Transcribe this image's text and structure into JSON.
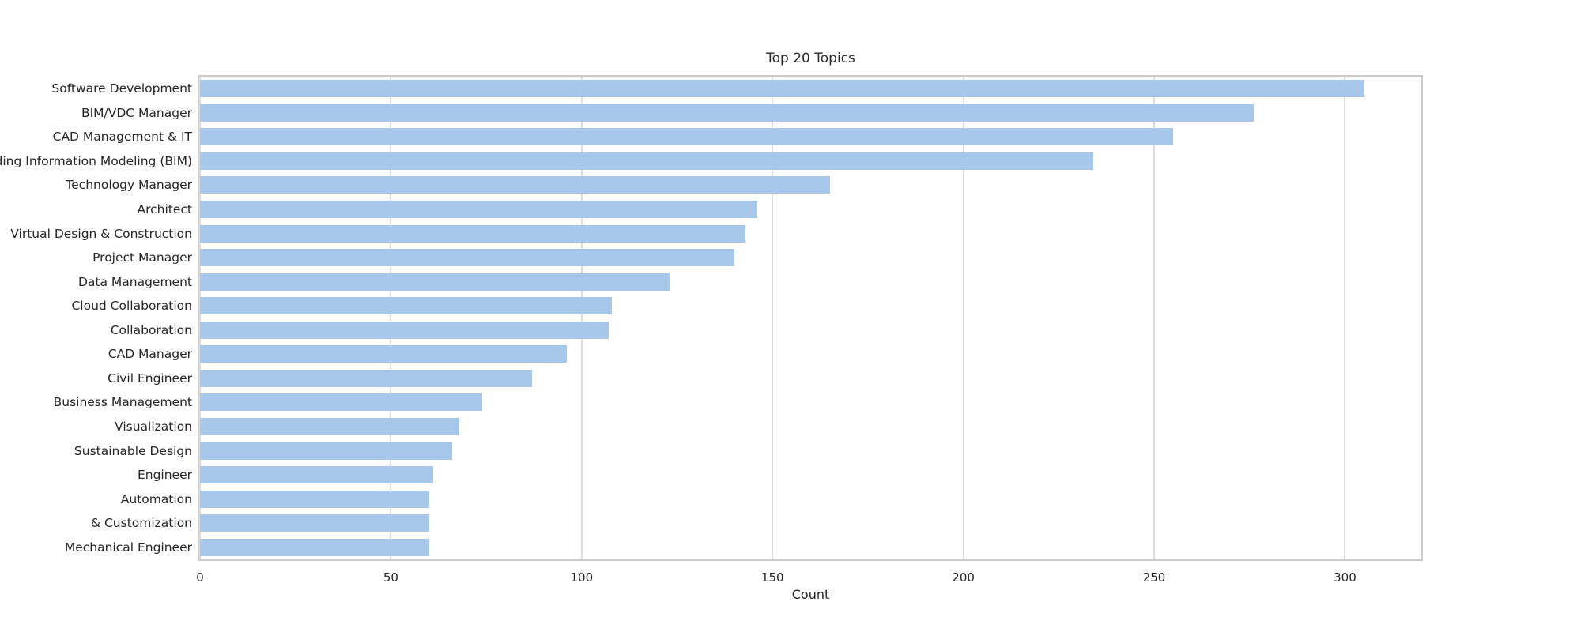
{
  "chart_data": {
    "type": "bar",
    "orientation": "horizontal",
    "title": "Top 20 Topics",
    "xlabel": "Count",
    "ylabel": "",
    "grid": true,
    "legend": false,
    "xlim": [
      0,
      320
    ],
    "x_ticks": [
      0,
      50,
      100,
      150,
      200,
      250,
      300
    ],
    "categories": [
      "Software Development",
      "BIM/VDC Manager",
      "CAD Management & IT",
      "Building Information Modeling (BIM)",
      "Technology Manager",
      "Architect",
      "Virtual Design & Construction",
      "Project Manager",
      "Data Management",
      "Cloud Collaboration",
      "Collaboration",
      "CAD Manager",
      "Civil Engineer",
      "Business Management",
      "Visualization",
      "Sustainable Design",
      "Engineer",
      "Automation",
      "& Customization",
      "Mechanical Engineer"
    ],
    "values": [
      305,
      276,
      255,
      234,
      165,
      146,
      143,
      140,
      123,
      108,
      107,
      96,
      87,
      74,
      68,
      66,
      61,
      60,
      60,
      60
    ]
  },
  "colors": {
    "bar": "#a7c8ea",
    "grid": "#dcdcdc",
    "spine": "#cccccc",
    "text": "#262626"
  }
}
